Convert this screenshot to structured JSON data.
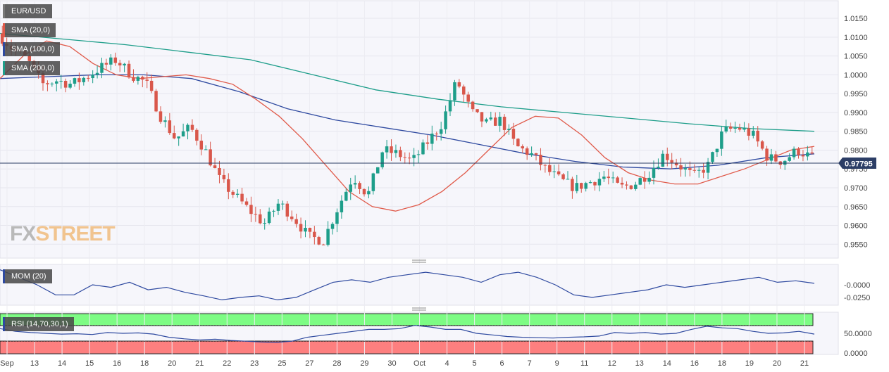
{
  "chart_data": {
    "type": "candlestick",
    "symbol": "EUR/USD",
    "last_price": "0.97795",
    "price_axis": {
      "ticks": [
        "1.0150",
        "1.0100",
        "1.0050",
        "1.0000",
        "0.9950",
        "0.9900",
        "0.9850",
        "0.9800",
        "0.9750",
        "0.9700",
        "0.9650",
        "0.9600",
        "0.9550"
      ],
      "ylim": [
        0.953,
        1.018
      ]
    },
    "x_axis": {
      "labels": [
        "Sep",
        "13",
        "14",
        "15",
        "16",
        "18",
        "20",
        "21",
        "22",
        "23",
        "25",
        "27",
        "28",
        "29",
        "30",
        "Oct",
        "4",
        "5",
        "6",
        "7",
        "9",
        "11",
        "12",
        "13",
        "14",
        "16",
        "18",
        "19",
        "20",
        "21"
      ]
    },
    "indicators": [
      {
        "name": "SMA (20,0)",
        "color": "#e05a4a"
      },
      {
        "name": "SMA (100,0)",
        "color": "#2f4aa0"
      },
      {
        "name": "SMA (200,0)",
        "color": "#1e9e8a"
      }
    ],
    "price_path": [
      1.011,
      1.007,
      1.004,
      0.9975,
      0.9985,
      0.9975,
      0.9995,
      1.002,
      1.004,
      1.0,
      0.998,
      0.989,
      0.983,
      0.986,
      0.98,
      0.972,
      0.968,
      0.964,
      0.9605,
      0.966,
      0.962,
      0.957,
      0.956,
      0.965,
      0.973,
      0.968,
      0.98,
      0.979,
      0.977,
      0.982,
      0.987,
      0.9985,
      0.99,
      0.987,
      0.988,
      0.981,
      0.979,
      0.975,
      0.972,
      0.97,
      0.9715,
      0.973,
      0.97,
      0.971,
      0.974,
      0.979,
      0.976,
      0.973,
      0.976,
      0.985,
      0.986,
      0.984,
      0.978,
      0.977,
      0.98,
      0.978
    ],
    "sma20": [
      0.999,
      1.005,
      1.009,
      1.0075,
      1.003,
      1.0,
      0.999,
      0.9995,
      1.0,
      0.999,
      0.9975,
      0.9935,
      0.989,
      0.983,
      0.976,
      0.969,
      0.965,
      0.9638,
      0.9655,
      0.969,
      0.974,
      0.98,
      0.986,
      0.989,
      0.9885,
      0.984,
      0.978,
      0.974,
      0.972,
      0.971,
      0.971,
      0.973,
      0.975,
      0.9775,
      0.98,
      0.981
    ],
    "sma100": [
      0.999,
      0.9995,
      1.0,
      1.0,
      0.999,
      0.9955,
      0.991,
      0.988,
      0.986,
      0.984,
      0.9815,
      0.979,
      0.977,
      0.9755,
      0.975,
      0.976,
      0.978,
      0.979
    ],
    "sma200": [
      1.011,
      1.0095,
      1.008,
      1.006,
      1.004,
      1.0,
      0.996,
      0.9935,
      0.9915,
      0.99,
      0.9885,
      0.987,
      0.9857,
      0.985
    ],
    "momentum": {
      "name": "MOM (20)",
      "ticks": [
        "-0.0000",
        "-0.0250"
      ],
      "values": [
        0.03,
        0.015,
        0.0,
        -0.02,
        -0.02,
        0.0,
        -0.005,
        0.005,
        -0.01,
        -0.005,
        -0.015,
        -0.022,
        -0.03,
        -0.025,
        -0.022,
        -0.03,
        -0.025,
        -0.01,
        0.005,
        0.01,
        0.005,
        0.015,
        0.02,
        0.025,
        0.02,
        0.015,
        0.005,
        0.02,
        0.025,
        0.015,
        0.0,
        -0.02,
        -0.025,
        -0.02,
        -0.015,
        -0.01,
        0.0,
        -0.005,
        0.0,
        0.005,
        0.01,
        0.015,
        0.005,
        0.008,
        0.003
      ]
    },
    "rsi": {
      "name": "RSI (14,70,30,1)",
      "ticks": [
        "50.0000",
        "0.0000"
      ],
      "overbought": 70,
      "oversold": 30,
      "values": [
        62,
        55,
        52,
        50,
        48,
        49,
        47,
        52,
        50,
        51,
        48,
        40,
        36,
        33,
        35,
        32,
        30,
        28,
        27,
        30,
        40,
        45,
        50,
        55,
        60,
        60,
        62,
        70,
        66,
        60,
        60,
        50,
        46,
        42,
        40,
        39,
        38,
        40,
        41,
        43,
        52,
        50,
        52,
        48,
        50,
        60,
        68,
        64,
        62,
        55,
        50,
        51,
        55,
        48
      ]
    }
  },
  "colors": {
    "bull": "#1e9e8a",
    "bear": "#d9574b",
    "last_price_line": "#2c3e66",
    "overbought_fill": "#7dfc84",
    "oversold_fill": "#fd7f7f"
  },
  "watermark": {
    "part1": "FX",
    "part2": "STREET"
  }
}
